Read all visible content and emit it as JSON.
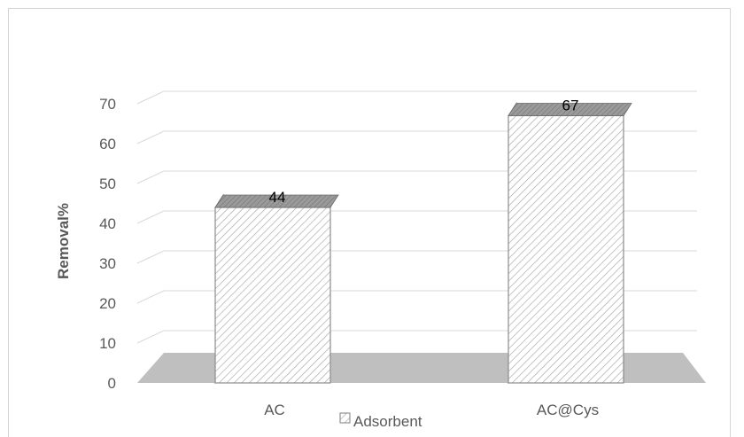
{
  "chart_data": {
    "type": "bar",
    "categories": [
      "AC",
      "AC@Cys"
    ],
    "series": [
      {
        "name": "Adsorbent",
        "values": [
          44,
          67
        ]
      }
    ],
    "data_labels": [
      "44",
      "67"
    ],
    "title": "",
    "xlabel": "",
    "ylabel": "Removal%",
    "ylim": [
      0,
      70
    ],
    "yticks": [
      "0",
      "10",
      "20",
      "30",
      "40",
      "50",
      "60",
      "70"
    ],
    "grid": true,
    "legend": "bottom",
    "style": "3d-column",
    "colors": {
      "bar_face": "#ffffff",
      "bar_hatch": "#a6a6a6",
      "bar_side": "#7f7f7f",
      "bar_top": "#8c8c8c",
      "floor": "#bfbfbf",
      "grid": "#d9d9d9"
    }
  }
}
